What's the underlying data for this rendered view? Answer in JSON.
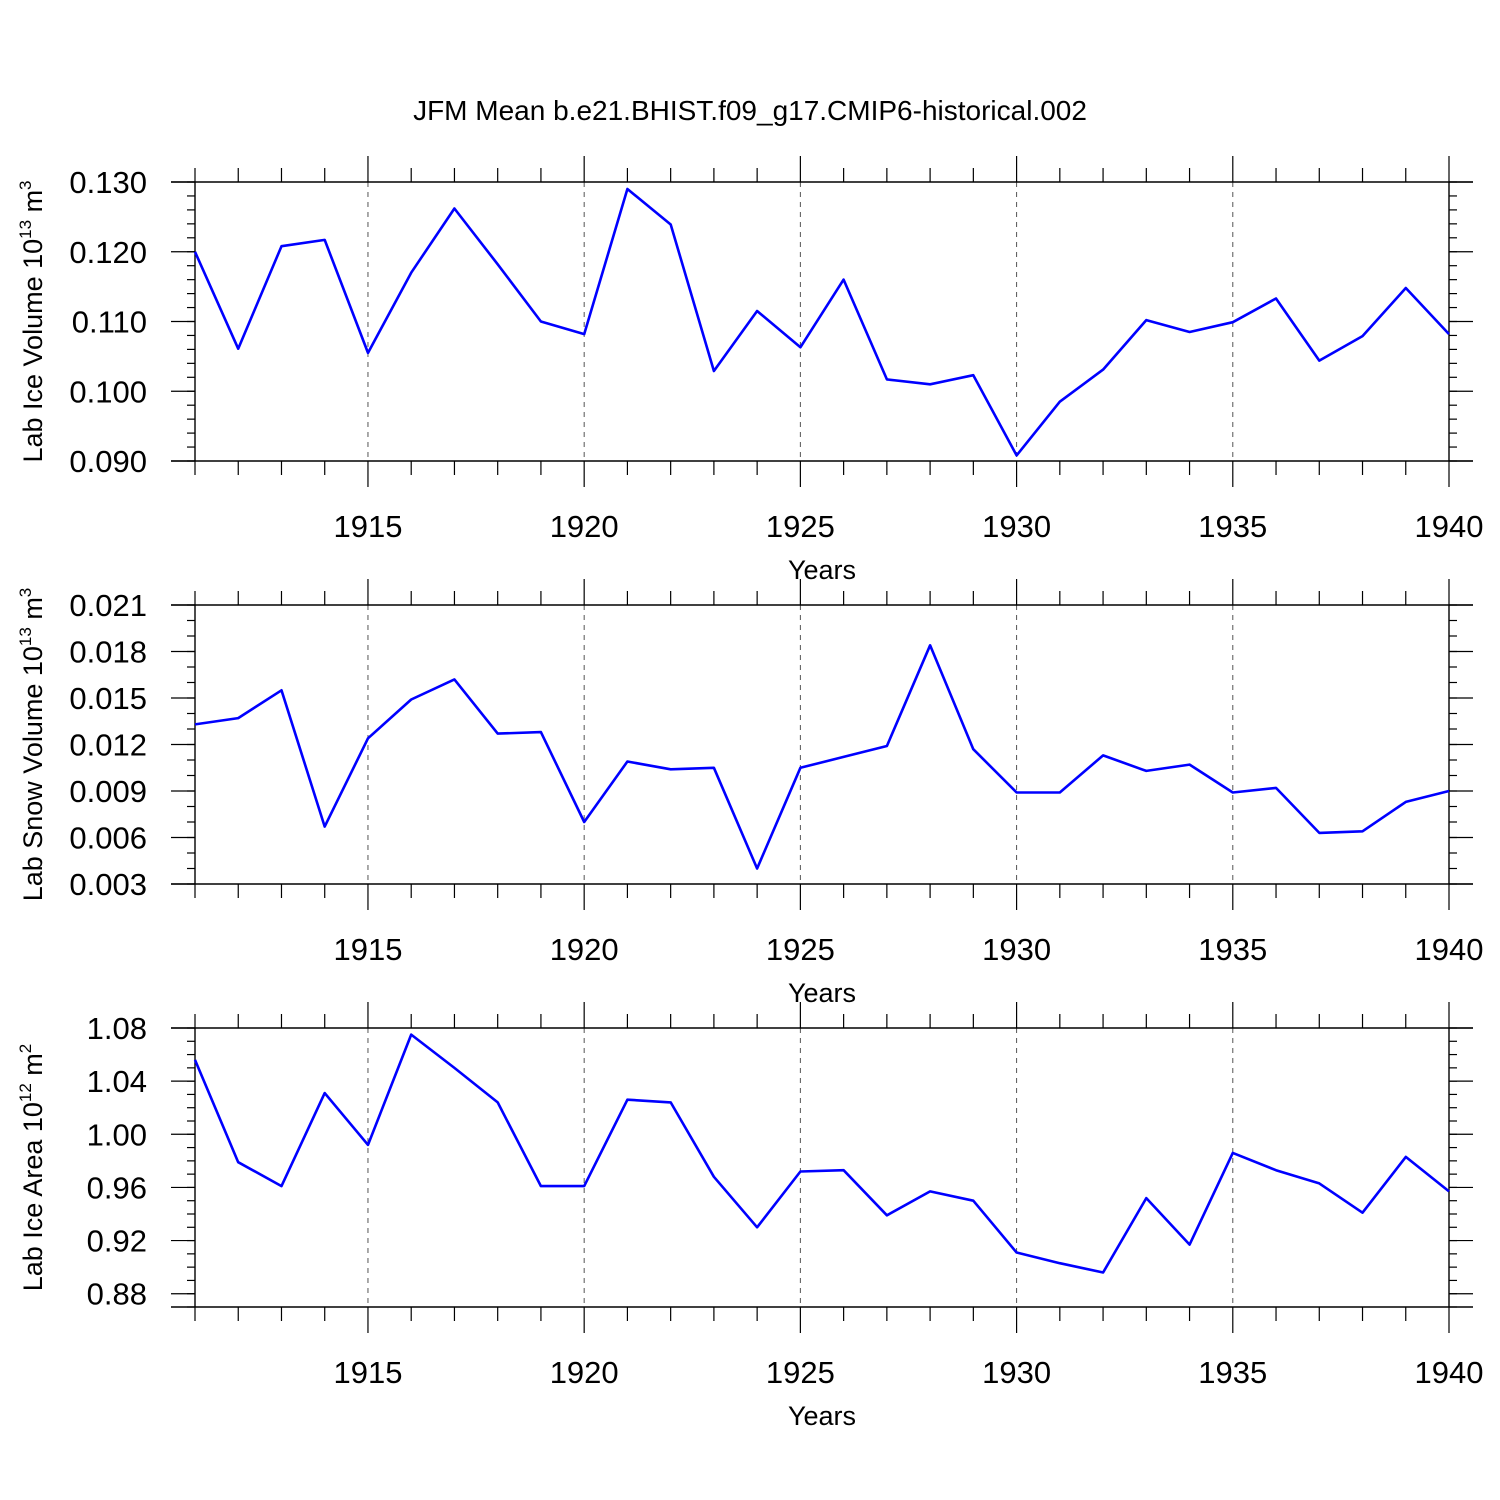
{
  "title": "JFM Mean b.e21.BHIST.f09_g17.CMIP6-historical.002",
  "chart_data": [
    {
      "type": "line",
      "ylabel": "Lab Ice Volume 10",
      "ylabel_exp": "13",
      "ylabel_unit": "m",
      "ylabel_unit_exp": "3",
      "xlabel": "Years",
      "xlim": [
        1911,
        1940
      ],
      "ylim": [
        0.09,
        0.13
      ],
      "yticks": [
        "0.090",
        "0.100",
        "0.110",
        "0.120",
        "0.130"
      ],
      "yminor_step": 0.002,
      "xticks": [
        "1915",
        "1920",
        "1925",
        "1930",
        "1935",
        "1940"
      ],
      "grid": "vertical-dashed",
      "x": [
        1911,
        1912,
        1913,
        1914,
        1915,
        1916,
        1917,
        1918,
        1919,
        1920,
        1921,
        1922,
        1923,
        1924,
        1925,
        1926,
        1927,
        1928,
        1929,
        1930,
        1931,
        1932,
        1933,
        1934,
        1935,
        1936,
        1937,
        1938,
        1939,
        1940
      ],
      "series": [
        {
          "values": [
            0.12,
            0.1061,
            0.1208,
            0.1217,
            0.1055,
            0.117,
            0.1262,
            0.1182,
            0.11,
            0.1082,
            0.129,
            0.1239,
            0.1029,
            0.1115,
            0.1063,
            0.116,
            0.1017,
            0.101,
            0.1023,
            0.0908,
            0.0985,
            0.1031,
            0.1102,
            0.1085,
            0.1099,
            0.1133,
            0.1044,
            0.1079,
            0.1148,
            0.1082
          ],
          "color": "#0000ff"
        }
      ]
    },
    {
      "type": "line",
      "ylabel": "Lab Snow Volume 10",
      "ylabel_exp": "13",
      "ylabel_unit": "m",
      "ylabel_unit_exp": "3",
      "xlabel": "Years",
      "xlim": [
        1911,
        1940
      ],
      "ylim": [
        0.003,
        0.021
      ],
      "yticks": [
        "0.003",
        "0.006",
        "0.009",
        "0.012",
        "0.015",
        "0.018",
        "0.021"
      ],
      "yminor_step": 0.001,
      "xticks": [
        "1915",
        "1920",
        "1925",
        "1930",
        "1935",
        "1940"
      ],
      "grid": "vertical-dashed",
      "x": [
        1911,
        1912,
        1913,
        1914,
        1915,
        1916,
        1917,
        1918,
        1919,
        1920,
        1921,
        1922,
        1923,
        1924,
        1925,
        1926,
        1927,
        1928,
        1929,
        1930,
        1931,
        1932,
        1933,
        1934,
        1935,
        1936,
        1937,
        1938,
        1939,
        1940
      ],
      "series": [
        {
          "values": [
            0.0133,
            0.0137,
            0.0155,
            0.0067,
            0.0124,
            0.0149,
            0.0162,
            0.0127,
            0.0128,
            0.007,
            0.0109,
            0.0104,
            0.0105,
            0.004,
            0.0105,
            0.0112,
            0.0119,
            0.0184,
            0.0117,
            0.0089,
            0.0089,
            0.0113,
            0.0103,
            0.0107,
            0.0089,
            0.0092,
            0.0063,
            0.0064,
            0.0083,
            0.009
          ],
          "color": "#0000ff"
        }
      ]
    },
    {
      "type": "line",
      "ylabel": "Lab Ice Area 10",
      "ylabel_exp": "12",
      "ylabel_unit": "m",
      "ylabel_unit_exp": "2",
      "xlabel": "Years",
      "xlim": [
        1911,
        1940
      ],
      "ylim": [
        0.87,
        1.08
      ],
      "yticks": [
        "0.88",
        "0.92",
        "0.96",
        "1.00",
        "1.04",
        "1.08"
      ],
      "yminor_step": 0.01,
      "xticks": [
        "1915",
        "1920",
        "1925",
        "1930",
        "1935",
        "1940"
      ],
      "grid": "vertical-dashed",
      "x": [
        1911,
        1912,
        1913,
        1914,
        1915,
        1916,
        1917,
        1918,
        1919,
        1920,
        1921,
        1922,
        1923,
        1924,
        1925,
        1926,
        1927,
        1928,
        1929,
        1930,
        1931,
        1932,
        1933,
        1934,
        1935,
        1936,
        1937,
        1938,
        1939,
        1940
      ],
      "series": [
        {
          "values": [
            1.056,
            0.979,
            0.961,
            1.031,
            0.992,
            1.075,
            1.05,
            1.024,
            0.961,
            0.961,
            1.026,
            1.024,
            0.968,
            0.93,
            0.972,
            0.973,
            0.939,
            0.957,
            0.95,
            0.911,
            0.903,
            0.896,
            0.952,
            0.917,
            0.986,
            0.973,
            0.963,
            0.941,
            0.983,
            0.957
          ],
          "color": "#0000ff"
        }
      ]
    }
  ]
}
